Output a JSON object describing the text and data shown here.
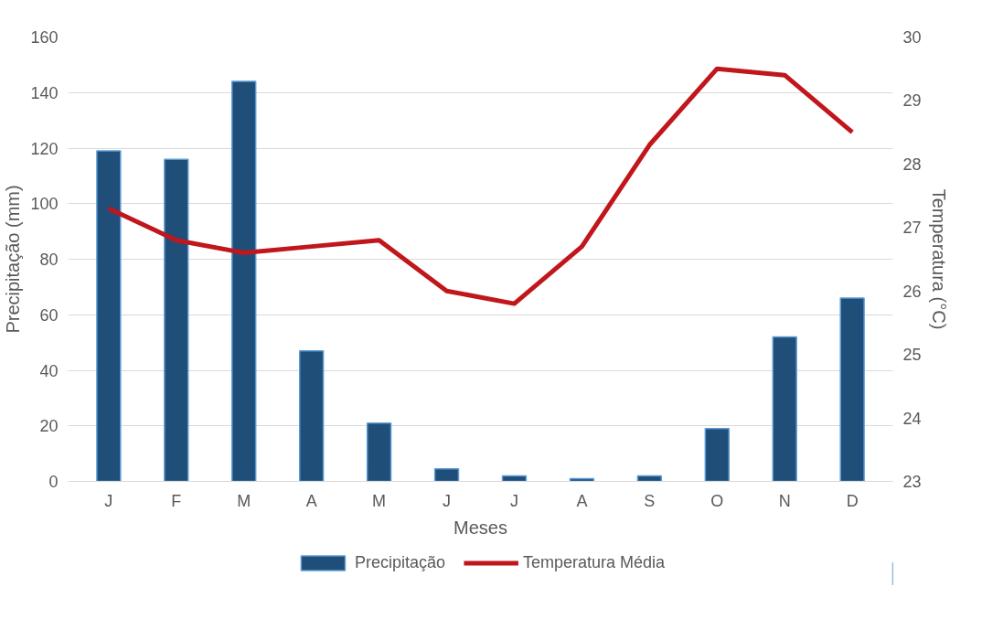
{
  "chart_data": {
    "type": "bar",
    "xlabel": "Meses",
    "ylabel": "Precipitação (mm)",
    "y2label": "Temperatura (°C)",
    "categories": [
      "J",
      "F",
      "M",
      "A",
      "M",
      "J",
      "J",
      "A",
      "S",
      "O",
      "N",
      "D"
    ],
    "series": [
      {
        "name": "Precipitação",
        "color": "#1f4e79",
        "values": [
          119,
          116,
          144,
          47,
          21,
          4.5,
          2,
          1,
          2,
          19,
          52,
          66
        ]
      },
      {
        "name": "Temperatura Média",
        "type": "line",
        "axis": "y2",
        "color": "#c0161c",
        "values": [
          27.3,
          26.8,
          26.6,
          26.7,
          26.8,
          26.0,
          25.8,
          26.7,
          28.3,
          29.5,
          29.4,
          28.5
        ]
      }
    ],
    "ylim": [
      0,
      160
    ],
    "yticks": [
      0,
      20,
      40,
      60,
      80,
      100,
      120,
      140,
      160
    ],
    "y2lim": [
      23,
      30
    ],
    "y2ticks": [
      23,
      24,
      25,
      26,
      27,
      28,
      29,
      30
    ],
    "grid": "y",
    "legend": "bottom",
    "line_style": "solid",
    "marker": "none"
  }
}
